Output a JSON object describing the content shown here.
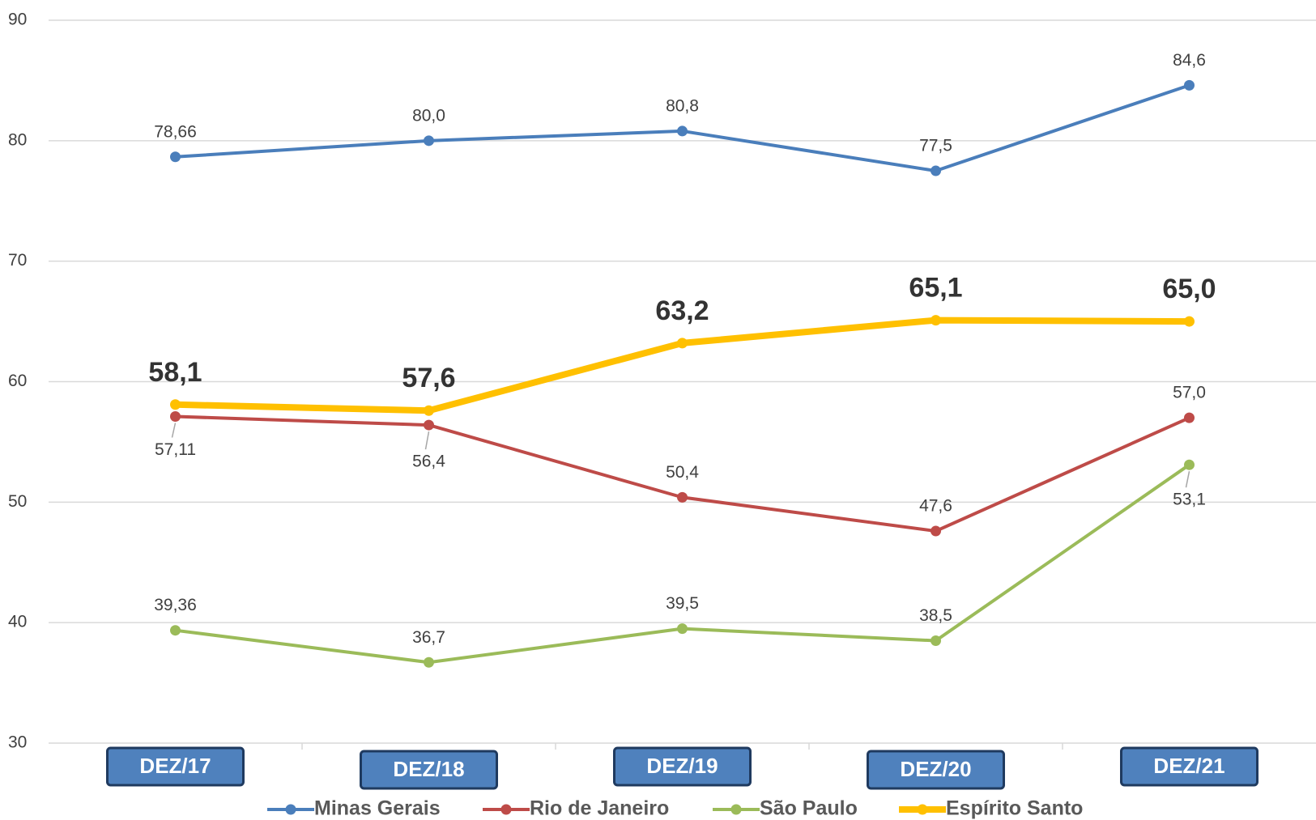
{
  "chart_data": {
    "type": "line",
    "categories": [
      "DEZ/17",
      "DEZ/18",
      "DEZ/19",
      "DEZ/20",
      "DEZ/21"
    ],
    "ylim": [
      30,
      90
    ],
    "yticks": [
      30,
      40,
      50,
      60,
      70,
      80,
      90
    ],
    "grid": true,
    "legend": "bottom",
    "series": [
      {
        "name": "Minas Gerais",
        "color": "#4a7ebb",
        "values": [
          78.66,
          80.0,
          80.8,
          77.5,
          84.6
        ],
        "value_labels": [
          "78,66",
          "80,0",
          "80,8",
          "77,5",
          "84,6"
        ]
      },
      {
        "name": "Rio de Janeiro",
        "color": "#be4b48",
        "values": [
          57.11,
          56.4,
          50.4,
          47.6,
          57.0
        ],
        "value_labels": [
          "57,11",
          "56,4",
          "50,4",
          "47,6",
          "57,0"
        ]
      },
      {
        "name": "São Paulo",
        "color": "#9bbb59",
        "values": [
          39.36,
          36.7,
          39.5,
          38.5,
          53.1
        ],
        "value_labels": [
          "39,36",
          "36,7",
          "39,5",
          "38,5",
          "53,1"
        ]
      },
      {
        "name": "Espírito Santo",
        "color": "#ffc000",
        "values": [
          58.1,
          57.6,
          63.2,
          65.1,
          65.0
        ],
        "value_labels": [
          "58,1",
          "57,6",
          "63,2",
          "65,1",
          "65,0"
        ]
      }
    ]
  }
}
